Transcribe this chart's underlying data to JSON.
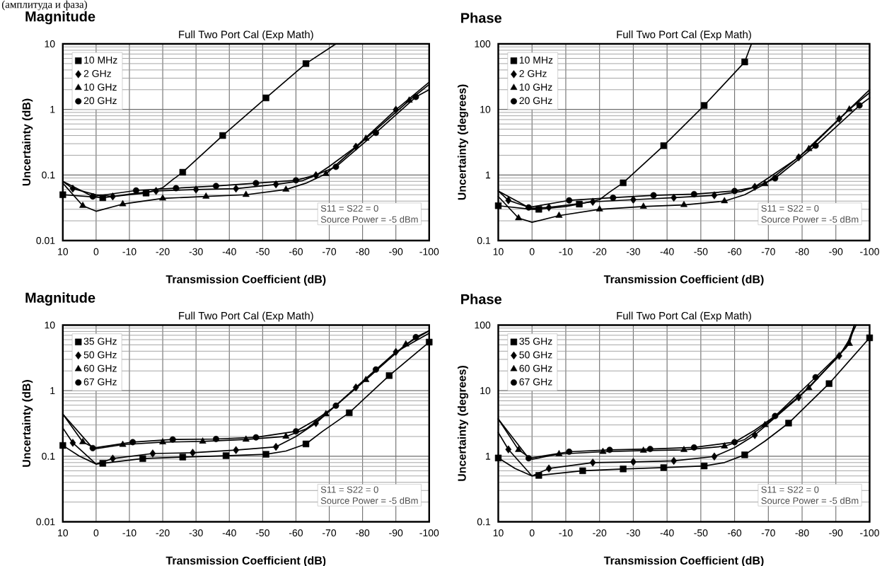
{
  "chart_data": [
    {
      "type": "line",
      "title": "Magnitude",
      "subtitle": "Full Two Port Cal (Exp Math)",
      "xlabel": "Transmission Coefficient (dB)",
      "ylabel": "Uncertainty (dB)",
      "xlim": [
        10,
        -100
      ],
      "ylim": [
        0.01,
        10
      ],
      "xticks": [
        10,
        0,
        -10,
        -20,
        -30,
        -40,
        -50,
        -60,
        -70,
        -80,
        -90,
        -100
      ],
      "yticks": [
        0.01,
        0.1,
        1,
        10
      ],
      "log": "y",
      "grid": true,
      "legend": "top left",
      "line_style": "solid",
      "annotations": [
        "S11 = S22 = 0",
        "Source Power = -5 dBm",
        "(амплитуда и фаза)"
      ],
      "series": [
        {
          "color": "#000000",
          "marker": "none",
          "x": [
            10,
            0,
            -2,
            -10,
            -15,
            -20,
            -23,
            -26,
            -38,
            -51,
            -63,
            -72
          ],
          "values": [
            0.05,
            0.046,
            0.045,
            0.05,
            0.053,
            0.064,
            0.085,
            0.11,
            0.4,
            1.5,
            5,
            10
          ]
        },
        {
          "color": "#000000",
          "marker": "none",
          "x": [
            10,
            7,
            0,
            -5,
            -10,
            -18,
            -30,
            -42,
            -54,
            -62,
            -66,
            -70,
            -78,
            -90,
            -100
          ],
          "values": [
            0.08,
            0.062,
            0.05,
            0.047,
            0.051,
            0.057,
            0.06,
            0.062,
            0.072,
            0.082,
            0.099,
            0.135,
            0.27,
            0.99,
            2.6
          ]
        },
        {
          "color": "#000000",
          "marker": "none",
          "x": [
            10,
            4,
            0,
            -8,
            -20,
            -33,
            -45,
            -57,
            -63,
            -69,
            -81,
            -94,
            -100
          ],
          "values": [
            0.075,
            0.034,
            0.028,
            0.036,
            0.044,
            0.047,
            0.05,
            0.06,
            0.075,
            0.104,
            0.36,
            1.37,
            2.4
          ]
        },
        {
          "color": "#000000",
          "marker": "none",
          "x": [
            10,
            1,
            -12,
            -24,
            -36,
            -48,
            -60,
            -66,
            -72,
            -84,
            -96,
            -100
          ],
          "values": [
            0.08,
            0.047,
            0.058,
            0.063,
            0.068,
            0.075,
            0.083,
            0.1,
            0.133,
            0.44,
            1.55,
            2.0
          ]
        },
        {
          "type": "scatter",
          "name": "10 MHz",
          "color": "#000000",
          "marker": "square",
          "x": [
            10,
            -2,
            -15,
            -26,
            -38,
            -51,
            -63
          ],
          "values": [
            0.05,
            0.045,
            0.053,
            0.11,
            0.4,
            1.5,
            5
          ]
        },
        {
          "type": "scatter",
          "name": "2 GHz",
          "color": "#000000",
          "marker": "diamond",
          "x": [
            7,
            -5,
            -18,
            -30,
            -42,
            -54,
            -66,
            -78,
            -90
          ],
          "values": [
            0.062,
            0.047,
            0.057,
            0.06,
            0.062,
            0.072,
            0.099,
            0.27,
            0.99
          ]
        },
        {
          "type": "scatter",
          "name": "10 GHz",
          "color": "#000000",
          "marker": "triangle",
          "x": [
            4,
            -8,
            -20,
            -33,
            -45,
            -57,
            -69,
            -81,
            -94
          ],
          "values": [
            0.034,
            0.036,
            0.044,
            0.047,
            0.05,
            0.06,
            0.104,
            0.36,
            1.37
          ]
        },
        {
          "type": "scatter",
          "name": "20 GHz",
          "color": "#000000",
          "marker": "circle",
          "x": [
            1,
            -12,
            -24,
            -36,
            -48,
            -60,
            -72,
            -84,
            -96
          ],
          "values": [
            0.047,
            0.058,
            0.063,
            0.068,
            0.075,
            0.083,
            0.133,
            0.44,
            1.55
          ]
        }
      ]
    },
    {
      "type": "line",
      "title": "Phase",
      "subtitle": "Full Two Port Cal (Exp Math)",
      "xlabel": "Transmission Coefficient (dB)",
      "ylabel": "Uncertainty (degrees)",
      "xlim": [
        10,
        -100
      ],
      "ylim": [
        0.1,
        100
      ],
      "xticks": [
        10,
        0,
        -10,
        -20,
        -30,
        -40,
        -50,
        -60,
        -70,
        -80,
        -90,
        -100
      ],
      "yticks": [
        0.1,
        1,
        10,
        100
      ],
      "log": "y",
      "grid": true,
      "legend": "top left",
      "line_style": "solid",
      "annotations": [
        "S11 = S22 = 0",
        "Source Power = -5 dBm"
      ],
      "series": [
        {
          "color": "#000000",
          "marker": "none",
          "x": [
            10,
            0,
            -2,
            -10,
            -14,
            -20,
            -23,
            -27,
            -39,
            -51,
            -63,
            -65
          ],
          "values": [
            0.34,
            0.3,
            0.3,
            0.33,
            0.36,
            0.42,
            0.55,
            0.76,
            2.8,
            11.5,
            53,
            100
          ]
        },
        {
          "color": "#000000",
          "marker": "none",
          "x": [
            10,
            7,
            0,
            -5,
            -18,
            -30,
            -42,
            -54,
            -62,
            -66,
            -70,
            -79,
            -91,
            -100
          ],
          "values": [
            0.57,
            0.41,
            0.31,
            0.32,
            0.39,
            0.42,
            0.45,
            0.49,
            0.56,
            0.66,
            0.9,
            1.86,
            7.2,
            20
          ]
        },
        {
          "color": "#000000",
          "marker": "none",
          "x": [
            10,
            4,
            0,
            -8,
            -20,
            -33,
            -45,
            -57,
            -63,
            -69,
            -82,
            -94,
            -100
          ],
          "values": [
            0.47,
            0.22,
            0.19,
            0.24,
            0.3,
            0.33,
            0.35,
            0.4,
            0.5,
            0.73,
            2.5,
            10,
            18
          ]
        },
        {
          "color": "#000000",
          "marker": "none",
          "x": [
            10,
            1,
            -11,
            -24,
            -36,
            -48,
            -60,
            -66,
            -72,
            -84,
            -97,
            -100
          ],
          "values": [
            0.57,
            0.32,
            0.41,
            0.45,
            0.49,
            0.51,
            0.57,
            0.65,
            0.89,
            2.8,
            11.5,
            15
          ]
        },
        {
          "type": "scatter",
          "name": "10 MHz",
          "color": "#000000",
          "marker": "square",
          "x": [
            10,
            -2,
            -14,
            -27,
            -39,
            -51,
            -63
          ],
          "values": [
            0.34,
            0.3,
            0.36,
            0.76,
            2.8,
            11.5,
            53
          ]
        },
        {
          "type": "scatter",
          "name": "2 GHz",
          "color": "#000000",
          "marker": "diamond",
          "x": [
            7,
            -5,
            -18,
            -30,
            -42,
            -54,
            -66,
            -79,
            -91
          ],
          "values": [
            0.41,
            0.32,
            0.39,
            0.42,
            0.45,
            0.49,
            0.66,
            1.86,
            7.2
          ]
        },
        {
          "type": "scatter",
          "name": "10 GHz",
          "color": "#000000",
          "marker": "triangle",
          "x": [
            4,
            -8,
            -20,
            -33,
            -45,
            -57,
            -69,
            -82,
            -94
          ],
          "values": [
            0.22,
            0.24,
            0.3,
            0.33,
            0.35,
            0.4,
            0.73,
            2.5,
            10
          ]
        },
        {
          "type": "scatter",
          "name": "20 GHz",
          "color": "#000000",
          "marker": "circle",
          "x": [
            1,
            -11,
            -24,
            -36,
            -48,
            -60,
            -72,
            -84,
            -97
          ],
          "values": [
            0.32,
            0.41,
            0.45,
            0.49,
            0.51,
            0.57,
            0.89,
            2.8,
            11.5
          ]
        }
      ]
    },
    {
      "type": "line",
      "title": "Magnitude",
      "subtitle": "Full Two Port Cal (Exp Math)",
      "xlabel": "Transmission Coefficient (dB)",
      "ylabel": "Uncertainty (dB)",
      "xlim": [
        10,
        -100
      ],
      "ylim": [
        0.01,
        10
      ],
      "xticks": [
        10,
        0,
        -10,
        -20,
        -30,
        -40,
        -50,
        -60,
        -70,
        -80,
        -90,
        -100
      ],
      "yticks": [
        0.01,
        0.1,
        1,
        10
      ],
      "log": "y",
      "grid": true,
      "legend": "top left",
      "line_style": "solid",
      "annotations": [
        "S11 = S22 = 0",
        "Source Power = -5 dBm"
      ],
      "series": [
        {
          "color": "#000000",
          "marker": "none",
          "x": [
            10,
            5,
            0,
            -2,
            -14,
            -26,
            -39,
            -51,
            -57,
            -63,
            -68,
            -76,
            -88,
            -100
          ],
          "values": [
            0.146,
            0.1,
            0.076,
            0.078,
            0.092,
            0.097,
            0.102,
            0.107,
            0.12,
            0.154,
            0.24,
            0.46,
            1.7,
            5.5
          ]
        },
        {
          "color": "#000000",
          "marker": "none",
          "x": [
            10,
            7,
            0,
            -5,
            -17,
            -29,
            -42,
            -54,
            -60,
            -66,
            -78,
            -90,
            -100
          ],
          "values": [
            0.27,
            0.16,
            0.076,
            0.092,
            0.11,
            0.113,
            0.124,
            0.139,
            0.2,
            0.32,
            1.12,
            3.9,
            7.5
          ]
        },
        {
          "color": "#000000",
          "marker": "none",
          "x": [
            10,
            4,
            0,
            -8,
            -20,
            -32,
            -45,
            -57,
            -63,
            -69,
            -81,
            -93,
            -100
          ],
          "values": [
            0.44,
            0.165,
            0.13,
            0.15,
            0.164,
            0.168,
            0.18,
            0.2,
            0.26,
            0.44,
            1.46,
            5.1,
            8.2
          ]
        },
        {
          "color": "#000000",
          "marker": "none",
          "x": [
            10,
            1,
            -11,
            -23,
            -36,
            -48,
            -60,
            -66,
            -72,
            -84,
            -96,
            -100
          ],
          "values": [
            0.44,
            0.133,
            0.164,
            0.18,
            0.183,
            0.194,
            0.24,
            0.36,
            0.59,
            2.1,
            6.55,
            8.2
          ]
        },
        {
          "type": "scatter",
          "name": "35 GHz",
          "color": "#000000",
          "marker": "square",
          "x": [
            10,
            -2,
            -14,
            -26,
            -39,
            -51,
            -63,
            -76,
            -88,
            -100
          ],
          "values": [
            0.146,
            0.078,
            0.092,
            0.097,
            0.102,
            0.107,
            0.154,
            0.46,
            1.7,
            5.5
          ]
        },
        {
          "type": "scatter",
          "name": "50 GHz",
          "color": "#000000",
          "marker": "diamond",
          "x": [
            7,
            -5,
            -17,
            -29,
            -42,
            -54,
            -66,
            -78,
            -90
          ],
          "values": [
            0.16,
            0.092,
            0.11,
            0.113,
            0.124,
            0.139,
            0.32,
            1.12,
            3.9
          ]
        },
        {
          "type": "scatter",
          "name": "60 GHz",
          "color": "#000000",
          "marker": "triangle",
          "x": [
            4,
            -8,
            -20,
            -32,
            -45,
            -57,
            -69,
            -81,
            -93
          ],
          "values": [
            0.165,
            0.15,
            0.164,
            0.168,
            0.18,
            0.2,
            0.44,
            1.46,
            5.1
          ]
        },
        {
          "type": "scatter",
          "name": "67 GHz",
          "color": "#000000",
          "marker": "circle",
          "x": [
            1,
            -11,
            -23,
            -36,
            -48,
            -60,
            -72,
            -84,
            -96
          ],
          "values": [
            0.133,
            0.164,
            0.18,
            0.183,
            0.194,
            0.24,
            0.59,
            2.1,
            6.55
          ]
        }
      ]
    },
    {
      "type": "line",
      "title": "Phase",
      "subtitle": "Full Two Port Cal (Exp Math)",
      "xlabel": "Transmission Coefficient (dB)",
      "ylabel": "Uncertainty (degrees)",
      "xlim": [
        10,
        -100
      ],
      "ylim": [
        0.1,
        100
      ],
      "xticks": [
        10,
        0,
        -10,
        -20,
        -30,
        -40,
        -50,
        -60,
        -70,
        -80,
        -90,
        -100
      ],
      "yticks": [
        0.1,
        1,
        10,
        100
      ],
      "log": "y",
      "grid": true,
      "legend": "top left",
      "line_style": "solid",
      "annotations": [
        "S11 = S22 = 0",
        "Source Power = -5 dBm"
      ],
      "series": [
        {
          "color": "#000000",
          "marker": "none",
          "x": [
            10,
            5,
            0,
            -2,
            -15,
            -27,
            -39,
            -51,
            -57,
            -63,
            -69,
            -76,
            -88,
            -100
          ],
          "values": [
            0.94,
            0.65,
            0.5,
            0.51,
            0.6,
            0.64,
            0.67,
            0.71,
            0.8,
            1.05,
            1.7,
            3.2,
            12.8,
            64
          ]
        },
        {
          "color": "#000000",
          "marker": "none",
          "x": [
            10,
            7,
            0,
            -5,
            -18,
            -30,
            -42,
            -54,
            -60,
            -66,
            -79,
            -91,
            -94,
            -96
          ],
          "values": [
            2.3,
            1.27,
            0.5,
            0.65,
            0.8,
            0.82,
            0.85,
            0.99,
            1.35,
            2.1,
            7.9,
            34,
            60,
            100
          ]
        },
        {
          "color": "#000000",
          "marker": "none",
          "x": [
            10,
            4,
            0,
            -8,
            -21,
            -33,
            -45,
            -57,
            -63,
            -69,
            -82,
            -94,
            -95.5
          ],
          "values": [
            3.7,
            1.25,
            0.9,
            1.08,
            1.17,
            1.22,
            1.25,
            1.42,
            1.8,
            3.0,
            11,
            52,
            100
          ]
        },
        {
          "color": "#000000",
          "marker": "none",
          "x": [
            10,
            1,
            -11,
            -23,
            -35,
            -48,
            -60,
            -66,
            -72,
            -84,
            -93,
            -95.5
          ],
          "values": [
            3.7,
            0.93,
            1.17,
            1.25,
            1.29,
            1.36,
            1.64,
            2.5,
            4.1,
            16,
            45,
            100
          ]
        },
        {
          "type": "scatter",
          "name": "35 GHz",
          "color": "#000000",
          "marker": "square",
          "x": [
            10,
            -2,
            -15,
            -27,
            -39,
            -51,
            -63,
            -76,
            -88,
            -100
          ],
          "values": [
            0.94,
            0.51,
            0.6,
            0.64,
            0.67,
            0.71,
            1.05,
            3.2,
            12.8,
            64
          ]
        },
        {
          "type": "scatter",
          "name": "50 GHz",
          "color": "#000000",
          "marker": "diamond",
          "x": [
            7,
            -5,
            -18,
            -30,
            -42,
            -54,
            -66,
            -79,
            -91
          ],
          "values": [
            1.27,
            0.65,
            0.8,
            0.82,
            0.85,
            0.99,
            2.1,
            7.9,
            34
          ]
        },
        {
          "type": "scatter",
          "name": "60 GHz",
          "color": "#000000",
          "marker": "triangle",
          "x": [
            4,
            -8,
            -21,
            -33,
            -45,
            -57,
            -69,
            -82,
            -94
          ],
          "values": [
            1.25,
            1.08,
            1.17,
            1.22,
            1.25,
            1.42,
            3.0,
            11,
            52
          ]
        },
        {
          "type": "scatter",
          "name": "67 GHz",
          "color": "#000000",
          "marker": "circle",
          "x": [
            1,
            -11,
            -23,
            -35,
            -48,
            -60,
            -72,
            -84
          ],
          "values": [
            0.93,
            1.17,
            1.25,
            1.29,
            1.36,
            1.64,
            4.1,
            16
          ]
        }
      ]
    }
  ]
}
